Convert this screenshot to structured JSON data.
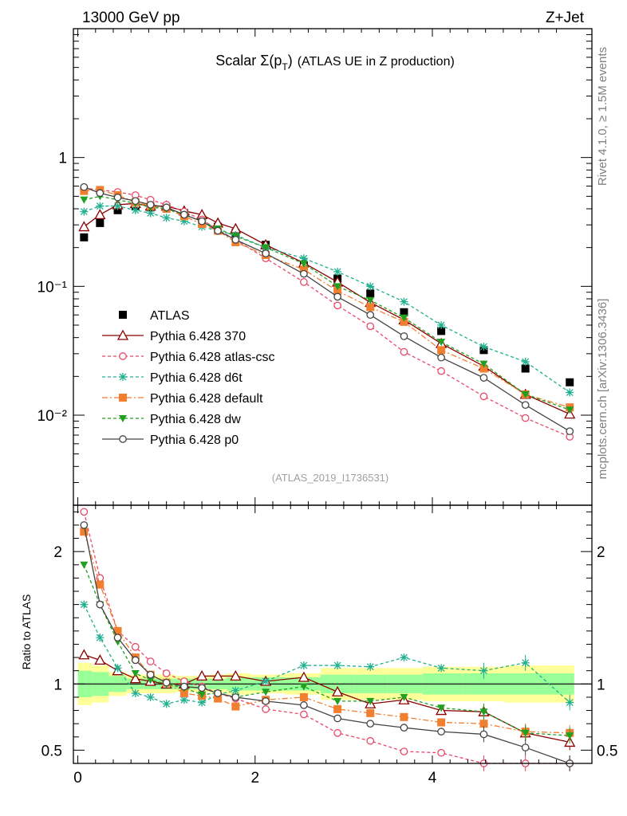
{
  "header": {
    "left": "13000 GeV pp",
    "right": "Z+Jet"
  },
  "side": {
    "rivet": "Rivet 4.1.0, ≥ 1.5M events",
    "mcplots": "mcplots.cern.ch [arXiv:1306.3436]"
  },
  "chart_data": {
    "type": "scatter",
    "title_main": "Scalar Σ(p",
    "title_sub": "T",
    "title_close": ")",
    "title_suffix": "(ATLAS UE in Z production)",
    "analysis": "(ATLAS_2019_I1736531)",
    "ratio_ylabel": "Ratio to ATLAS",
    "x": [
      0.07,
      0.25,
      0.45,
      0.65,
      0.82,
      1.0,
      1.2,
      1.4,
      1.58,
      1.78,
      2.12,
      2.55,
      2.93,
      3.3,
      3.68,
      4.1,
      4.58,
      5.05,
      5.55
    ],
    "xlim": [
      -0.05,
      5.8
    ],
    "xticks": [
      "0",
      "2",
      "4"
    ],
    "ylim_main_log": [
      0.002,
      10
    ],
    "yticks_main": [
      "1",
      "10⁻¹",
      "10⁻²"
    ],
    "ylim_ratio": [
      0.4,
      2.35
    ],
    "yticks_ratio": [
      "0.5",
      "1",
      "2"
    ],
    "series": [
      {
        "name": "ATLAS",
        "color": "#000000",
        "dash": "",
        "marker": "square-filled",
        "values": [
          0.24,
          0.31,
          0.39,
          0.42,
          0.41,
          0.41,
          0.37,
          0.33,
          0.29,
          0.26,
          0.21,
          0.145,
          0.115,
          0.088,
          0.063,
          0.045,
          0.032,
          0.023,
          0.018
        ],
        "ratio": [
          1,
          1,
          1,
          1,
          1,
          1,
          1,
          1,
          1,
          1,
          1,
          1,
          1,
          1,
          1,
          1,
          1,
          1,
          1
        ]
      },
      {
        "name": "Pythia 6.428 370",
        "color": "#8b0000",
        "dash": "",
        "marker": "triangle-open",
        "values": [
          0.29,
          0.36,
          0.43,
          0.44,
          0.42,
          0.42,
          0.385,
          0.36,
          0.31,
          0.28,
          0.21,
          0.152,
          0.108,
          0.075,
          0.055,
          0.036,
          0.024,
          0.0145,
          0.0102
        ],
        "ratio": [
          1.22,
          1.18,
          1.1,
          1.04,
          1.02,
          1.0,
          1.0,
          1.06,
          1.06,
          1.06,
          1.02,
          1.05,
          0.94,
          0.85,
          0.88,
          0.8,
          0.79,
          0.63,
          0.56
        ]
      },
      {
        "name": "Pythia 6.428 atlas-csc",
        "color": "#e8476b",
        "dash": "4,3",
        "marker": "circle-open",
        "values": [
          0.58,
          0.56,
          0.54,
          0.51,
          0.47,
          0.43,
          0.38,
          0.33,
          0.275,
          0.23,
          0.165,
          0.108,
          0.071,
          0.049,
          0.031,
          0.022,
          0.014,
          0.0095,
          0.0068
        ],
        "ratio": [
          2.3,
          1.8,
          1.4,
          1.28,
          1.17,
          1.08,
          1.02,
          0.98,
          0.93,
          0.89,
          0.81,
          0.77,
          0.63,
          0.57,
          0.49,
          0.48,
          0.39,
          0.4,
          0.35
        ]
      },
      {
        "name": "Pythia 6.428 d6t",
        "color": "#20b090",
        "dash": "4,3",
        "marker": "star",
        "values": [
          0.38,
          0.42,
          0.42,
          0.39,
          0.37,
          0.34,
          0.32,
          0.29,
          0.27,
          0.25,
          0.2,
          0.165,
          0.13,
          0.1,
          0.076,
          0.05,
          0.034,
          0.026,
          0.015
        ],
        "ratio": [
          1.6,
          1.35,
          1.12,
          0.93,
          0.9,
          0.85,
          0.88,
          0.86,
          0.92,
          0.95,
          1.02,
          1.14,
          1.14,
          1.13,
          1.2,
          1.12,
          1.1,
          1.16,
          0.86
        ]
      },
      {
        "name": "Pythia 6.428 default",
        "color": "#f07f2f",
        "dash": "7,3,2,3",
        "marker": "square-filled",
        "values": [
          0.55,
          0.56,
          0.51,
          0.45,
          0.42,
          0.4,
          0.35,
          0.305,
          0.27,
          0.22,
          0.175,
          0.135,
          0.092,
          0.069,
          0.053,
          0.032,
          0.023,
          0.0145,
          0.0115
        ],
        "ratio": [
          2.15,
          1.75,
          1.4,
          1.2,
          1.07,
          1.01,
          0.93,
          0.91,
          0.89,
          0.83,
          0.88,
          0.9,
          0.81,
          0.78,
          0.75,
          0.71,
          0.7,
          0.64,
          0.63
        ]
      },
      {
        "name": "Pythia 6.428 dw",
        "color": "#20a020",
        "dash": "4,3",
        "marker": "triangle-down-filled",
        "values": [
          0.47,
          0.5,
          0.47,
          0.44,
          0.41,
          0.4,
          0.36,
          0.32,
          0.28,
          0.245,
          0.2,
          0.15,
          0.1,
          0.078,
          0.057,
          0.037,
          0.025,
          0.0145,
          0.011
        ],
        "ratio": [
          1.9,
          1.6,
          1.32,
          1.08,
          1.03,
          1.0,
          0.97,
          0.92,
          0.93,
          0.9,
          0.94,
          0.98,
          0.87,
          0.87,
          0.9,
          0.82,
          0.79,
          0.63,
          0.61
        ]
      },
      {
        "name": "Pythia 6.428 p0",
        "color": "#444444",
        "dash": "",
        "marker": "circle-open",
        "values": [
          0.59,
          0.53,
          0.49,
          0.46,
          0.43,
          0.41,
          0.36,
          0.32,
          0.27,
          0.23,
          0.18,
          0.125,
          0.083,
          0.06,
          0.041,
          0.028,
          0.0195,
          0.012,
          0.0075
        ],
        "ratio": [
          2.2,
          1.6,
          1.35,
          1.18,
          1.07,
          1.01,
          0.98,
          0.97,
          0.93,
          0.9,
          0.87,
          0.84,
          0.74,
          0.7,
          0.67,
          0.64,
          0.62,
          0.52,
          0.37
        ]
      }
    ],
    "band_yellow": [
      0.16,
      0.14,
      0.09,
      0.07,
      0.07,
      0.07,
      0.06,
      0.06,
      0.07,
      0.08,
      0.07,
      0.08,
      0.12,
      0.12,
      0.12,
      0.13,
      0.13,
      0.14,
      0.14
    ],
    "band_green": [
      0.1,
      0.09,
      0.06,
      0.04,
      0.04,
      0.04,
      0.04,
      0.04,
      0.04,
      0.05,
      0.05,
      0.05,
      0.07,
      0.07,
      0.07,
      0.08,
      0.08,
      0.08,
      0.08
    ]
  }
}
